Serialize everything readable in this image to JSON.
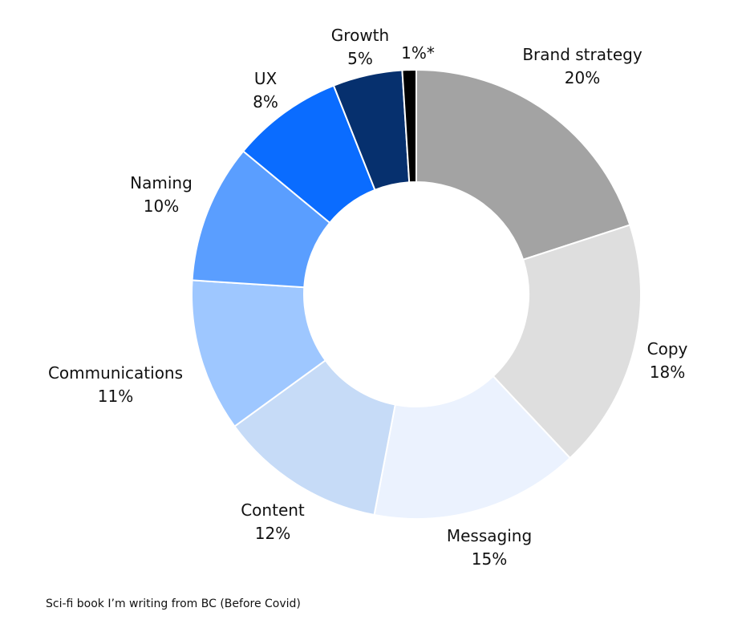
{
  "chart_data": {
    "type": "pie",
    "donut": true,
    "slices": [
      {
        "label": "Brand strategy",
        "value_label": "20%",
        "value": 20,
        "color": "#a3a3a3"
      },
      {
        "label": "Copy",
        "value_label": "18%",
        "value": 18,
        "color": "#dedede"
      },
      {
        "label": "Messaging",
        "value_label": "15%",
        "value": 15,
        "color": "#ebf2fe"
      },
      {
        "label": "Content",
        "value_label": "12%",
        "value": 12,
        "color": "#c6dbf7"
      },
      {
        "label": "Communications",
        "value_label": "11%",
        "value": 11,
        "color": "#9ec7ff"
      },
      {
        "label": "Naming",
        "value_label": "10%",
        "value": 10,
        "color": "#5a9eff"
      },
      {
        "label": "UX",
        "value_label": "8%",
        "value": 8,
        "color": "#0a6cff"
      },
      {
        "label": "Growth",
        "value_label": "5%",
        "value": 5,
        "color": "#06306e"
      },
      {
        "label": "",
        "value_label": "1%*",
        "value": 1,
        "color": "#000000"
      }
    ]
  },
  "footnote": "Sci-fi book I’m writing from BC (Before Covid)"
}
